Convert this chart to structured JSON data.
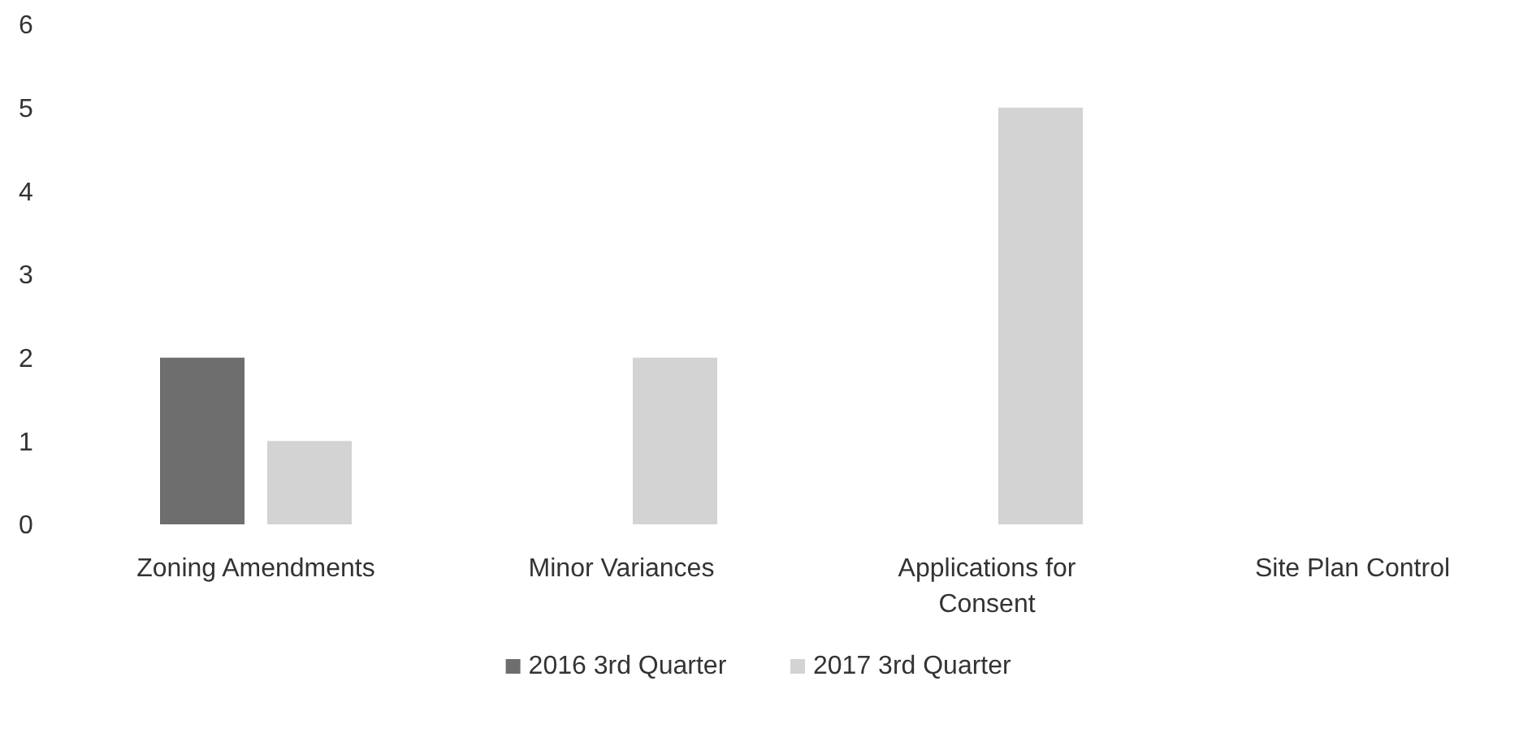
{
  "chart_data": {
    "type": "bar",
    "categories": [
      "Zoning Amendments",
      "Minor Variances",
      "Applications for Consent",
      "Site Plan Control"
    ],
    "series": [
      {
        "name": "2016 3rd Quarter",
        "color": "#6e6e6e",
        "values": [
          2,
          0,
          0,
          0
        ]
      },
      {
        "name": "2017 3rd Quarter",
        "color": "#d3d3d3",
        "values": [
          1,
          2,
          5,
          0
        ]
      }
    ],
    "ylim": [
      0,
      6
    ],
    "yticks": [
      0,
      1,
      2,
      3,
      4,
      5,
      6
    ],
    "grid": false,
    "legend": "bottom"
  }
}
